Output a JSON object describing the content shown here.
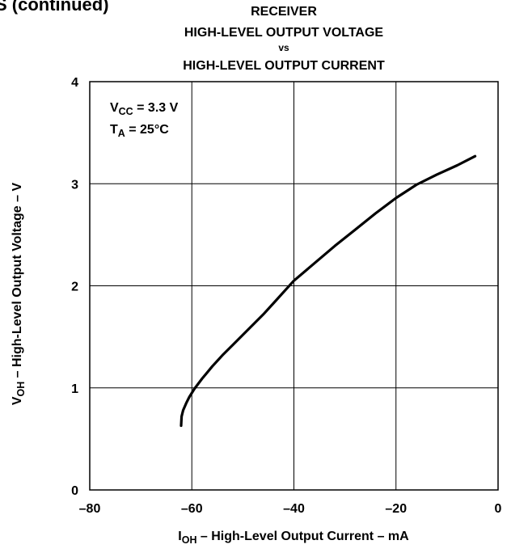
{
  "header_fragment": "S (continued)",
  "chart_data": {
    "type": "line",
    "title_lines": [
      "RECEIVER",
      "HIGH-LEVEL OUTPUT VOLTAGE",
      "vs",
      "HIGH-LEVEL OUTPUT CURRENT"
    ],
    "xlabel": {
      "prefix": "I",
      "sub": "OH",
      "rest": " – High-Level Output Current – mA"
    },
    "ylabel": {
      "prefix": "V",
      "sub": "OH",
      "rest": " – High-Level Output Voltage – V"
    },
    "xlim": [
      -80,
      0
    ],
    "ylim": [
      0,
      4
    ],
    "xticks": [
      -80,
      -60,
      -40,
      -20,
      0
    ],
    "xtick_labels": [
      "–80",
      "–60",
      "–40",
      "–20",
      "0"
    ],
    "yticks": [
      0,
      1,
      2,
      3,
      4
    ],
    "ytick_labels": [
      "0",
      "1",
      "2",
      "3",
      "4"
    ],
    "grid": true,
    "annotations": [
      {
        "prefix": "V",
        "sub": "CC",
        "rest": " = 3.3 V"
      },
      {
        "prefix": "T",
        "sub": "A",
        "rest": " = 25°C"
      }
    ],
    "series": [
      {
        "color": "#000000",
        "x": [
          -62.1,
          -62.0,
          -61.7,
          -61.1,
          -60.5,
          -59.5,
          -58,
          -56,
          -54,
          -52,
          -50,
          -48,
          -46,
          -44,
          -42,
          -40,
          -36,
          -32,
          -28,
          -24,
          -20,
          -16,
          -12,
          -8,
          -4.5
        ],
        "y": [
          0.63,
          0.72,
          0.78,
          0.85,
          0.91,
          0.99,
          1.09,
          1.21,
          1.32,
          1.42,
          1.52,
          1.62,
          1.72,
          1.83,
          1.94,
          2.05,
          2.22,
          2.39,
          2.55,
          2.71,
          2.86,
          2.99,
          3.09,
          3.18,
          3.27
        ]
      }
    ]
  }
}
